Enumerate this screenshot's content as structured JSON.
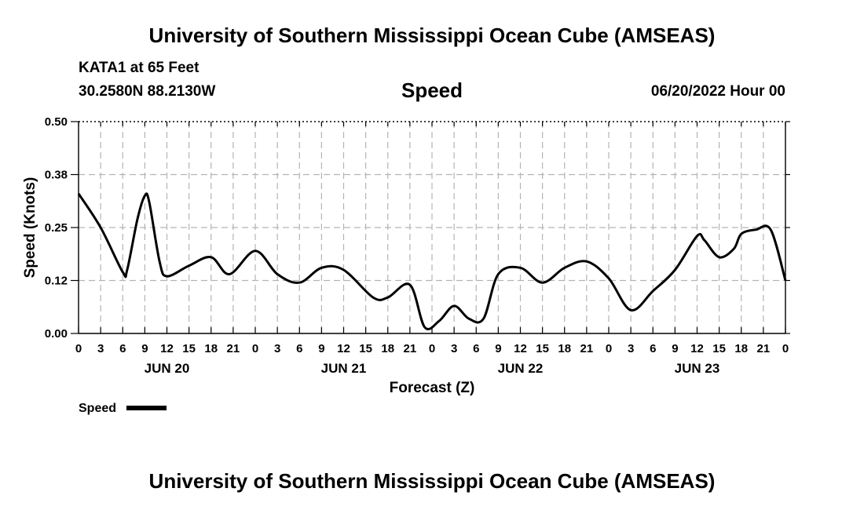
{
  "header": {
    "title": "University of Southern Mississippi Ocean Cube (AMSEAS)",
    "station": "KATA1 at 65 Feet",
    "coordinates": "30.2580N  88.2130W",
    "subtitle": "Speed",
    "datetime": "06/20/2022 Hour 00"
  },
  "footer": {
    "title": "University of Southern Mississippi Ocean Cube (AMSEAS)"
  },
  "chart_data": {
    "type": "line",
    "title": "Speed",
    "xlabel": "Forecast (Z)",
    "ylabel": "Speed (Knots)",
    "xlim": [
      0,
      96
    ],
    "ylim": [
      0,
      0.5
    ],
    "yticks": [
      "0.00",
      "0.12",
      "0.25",
      "0.38",
      "0.50"
    ],
    "yticks_values": [
      0,
      0.125,
      0.25,
      0.375,
      0.5
    ],
    "xtick_labels": [
      "0",
      "3",
      "6",
      "9",
      "12",
      "15",
      "18",
      "21",
      "0",
      "3",
      "6",
      "9",
      "12",
      "15",
      "18",
      "21",
      "0",
      "3",
      "6",
      "9",
      "12",
      "15",
      "18",
      "21",
      "0",
      "3",
      "6",
      "9",
      "12",
      "15",
      "18",
      "21",
      "0"
    ],
    "day_labels": [
      {
        "label": "JUN 20",
        "hour": 12
      },
      {
        "label": "JUN 21",
        "hour": 36
      },
      {
        "label": "JUN 22",
        "hour": 60
      },
      {
        "label": "JUN 23",
        "hour": 84
      }
    ],
    "grid": true,
    "series": [
      {
        "name": "Speed",
        "x": [
          0,
          3,
          6,
          6.6,
          8,
          9,
          9.6,
          11,
          12,
          15,
          18,
          20.5,
          24,
          27,
          30,
          33,
          36,
          40,
          42,
          45,
          47,
          49,
          51,
          53,
          55,
          57,
          60,
          63,
          66,
          69,
          72,
          75,
          78,
          81,
          84,
          85,
          87,
          89,
          90,
          92,
          94,
          96
        ],
        "values": [
          0.33,
          0.25,
          0.145,
          0.15,
          0.27,
          0.325,
          0.31,
          0.17,
          0.135,
          0.16,
          0.18,
          0.14,
          0.195,
          0.14,
          0.12,
          0.155,
          0.15,
          0.085,
          0.085,
          0.115,
          0.015,
          0.03,
          0.065,
          0.035,
          0.035,
          0.14,
          0.155,
          0.12,
          0.155,
          0.17,
          0.13,
          0.055,
          0.1,
          0.15,
          0.23,
          0.22,
          0.18,
          0.2,
          0.235,
          0.245,
          0.245,
          0.125
        ]
      }
    ],
    "legend": {
      "label": "Speed",
      "position": "bottom-left"
    }
  }
}
